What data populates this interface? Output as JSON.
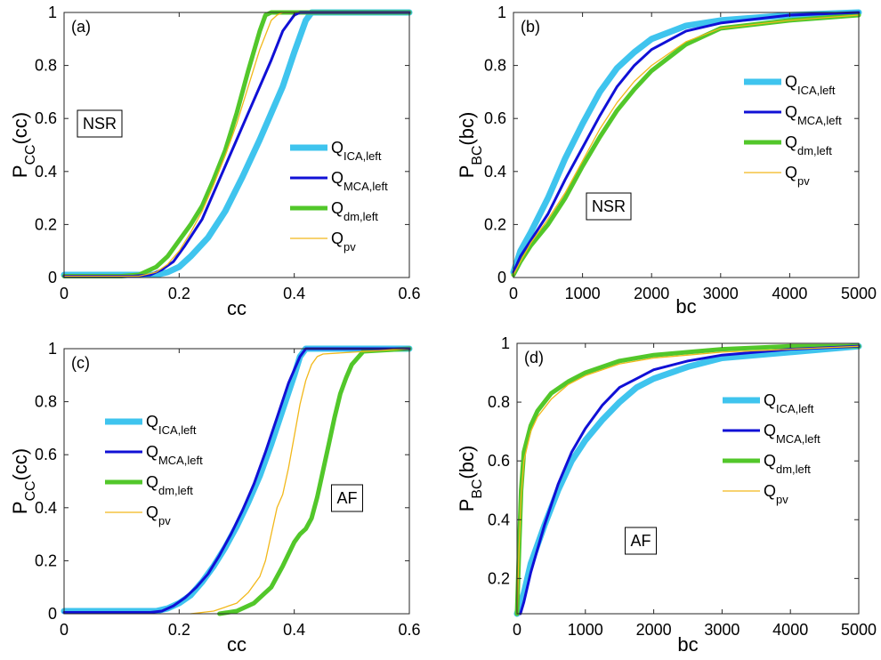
{
  "series_styles": {
    "ICA": {
      "color": "#3fc4ee",
      "width": 7
    },
    "MCA": {
      "color": "#1010d6",
      "width": 3
    },
    "dm": {
      "color": "#52c72a",
      "width": 5
    },
    "pv": {
      "color": "#f2b81a",
      "width": 1.3
    }
  },
  "chart_data": [
    {
      "type": "line",
      "panel_label": "(a)",
      "box_label": "NSR",
      "xlabel": "cc",
      "ylabel": {
        "main": "P",
        "sub": "CC",
        "suffix": "(cc)"
      },
      "xlim": [
        0,
        0.6
      ],
      "ylim": [
        0,
        1
      ],
      "xticks": [
        0,
        0.2,
        0.4,
        0.6
      ],
      "xtick_labels": [
        "0",
        "0.2",
        "0.4",
        "0.6"
      ],
      "yticks": [
        0,
        0.2,
        0.4,
        0.6,
        0.8,
        1
      ],
      "ytick_labels": [
        "0",
        "0.2",
        "0.4",
        "0.6",
        "0.8",
        "1"
      ],
      "legend_order": [
        "ICA",
        "MCA",
        "dm",
        "pv"
      ],
      "series": [
        {
          "key": "ICA",
          "name": "Q",
          "name_sub": "ICA,left",
          "x": [
            0,
            0.12,
            0.16,
            0.18,
            0.2,
            0.22,
            0.25,
            0.28,
            0.31,
            0.34,
            0.36,
            0.38,
            0.4,
            0.42,
            0.43,
            0.6
          ],
          "y": [
            0.01,
            0.01,
            0.01,
            0.02,
            0.04,
            0.08,
            0.15,
            0.25,
            0.38,
            0.52,
            0.62,
            0.72,
            0.85,
            0.97,
            1,
            1
          ]
        },
        {
          "key": "MCA",
          "name": "Q",
          "name_sub": "MCA,left",
          "x": [
            0,
            0.12,
            0.15,
            0.17,
            0.19,
            0.21,
            0.24,
            0.27,
            0.3,
            0.32,
            0.34,
            0.36,
            0.38,
            0.4,
            0.41,
            0.6
          ],
          "y": [
            0.005,
            0.005,
            0.01,
            0.03,
            0.06,
            0.12,
            0.22,
            0.37,
            0.52,
            0.62,
            0.72,
            0.82,
            0.93,
            0.99,
            1,
            1
          ]
        },
        {
          "key": "dm",
          "name": "Q",
          "name_sub": "dm,left",
          "x": [
            0,
            0.1,
            0.13,
            0.16,
            0.18,
            0.2,
            0.22,
            0.24,
            0.26,
            0.28,
            0.3,
            0.32,
            0.34,
            0.35,
            0.36,
            0.6
          ],
          "y": [
            0.005,
            0.005,
            0.01,
            0.04,
            0.08,
            0.14,
            0.2,
            0.27,
            0.37,
            0.48,
            0.62,
            0.78,
            0.93,
            0.99,
            1,
            1
          ]
        },
        {
          "key": "pv",
          "name": "Q",
          "name_sub": "pv",
          "x": [
            0,
            0.13,
            0.16,
            0.18,
            0.2,
            0.22,
            0.24,
            0.26,
            0.28,
            0.3,
            0.32,
            0.34,
            0.36,
            0.37,
            0.38,
            0.6
          ],
          "y": [
            0.005,
            0.005,
            0.02,
            0.05,
            0.1,
            0.17,
            0.25,
            0.35,
            0.46,
            0.58,
            0.72,
            0.86,
            0.97,
            0.99,
            1,
            1
          ]
        }
      ]
    },
    {
      "type": "line",
      "panel_label": "(b)",
      "box_label": "NSR",
      "xlabel": "bc",
      "ylabel": {
        "main": "P",
        "sub": "BC",
        "suffix": "(bc)"
      },
      "xlim": [
        0,
        5000
      ],
      "ylim": [
        0,
        1
      ],
      "xticks": [
        0,
        1000,
        2000,
        3000,
        4000,
        5000
      ],
      "xtick_labels": [
        "0",
        "1000",
        "2000",
        "3000",
        "4000",
        "5000"
      ],
      "yticks": [
        0,
        0.2,
        0.4,
        0.6,
        0.8,
        1
      ],
      "ytick_labels": [
        "0",
        "0.2",
        "0.4",
        "0.6",
        "0.8",
        "1"
      ],
      "legend_order": [
        "ICA",
        "MCA",
        "dm",
        "pv"
      ],
      "series": [
        {
          "key": "ICA",
          "name": "Q",
          "name_sub": "ICA,left",
          "x": [
            0,
            100,
            250,
            500,
            750,
            1000,
            1250,
            1500,
            1750,
            2000,
            2500,
            3000,
            4000,
            5000
          ],
          "y": [
            0.02,
            0.1,
            0.17,
            0.3,
            0.45,
            0.58,
            0.7,
            0.79,
            0.85,
            0.9,
            0.95,
            0.97,
            0.99,
            1
          ]
        },
        {
          "key": "MCA",
          "name": "Q",
          "name_sub": "MCA,left",
          "x": [
            0,
            100,
            250,
            500,
            750,
            1000,
            1250,
            1500,
            1750,
            2000,
            2500,
            3000,
            4000,
            5000
          ],
          "y": [
            0.02,
            0.08,
            0.14,
            0.24,
            0.37,
            0.49,
            0.61,
            0.72,
            0.8,
            0.86,
            0.93,
            0.96,
            0.99,
            1
          ]
        },
        {
          "key": "dm",
          "name": "Q",
          "name_sub": "dm,left",
          "x": [
            0,
            100,
            250,
            500,
            750,
            1000,
            1250,
            1500,
            1750,
            2000,
            2500,
            3000,
            4000,
            5000
          ],
          "y": [
            0.01,
            0.06,
            0.12,
            0.2,
            0.3,
            0.42,
            0.53,
            0.63,
            0.71,
            0.78,
            0.88,
            0.94,
            0.97,
            0.99
          ]
        },
        {
          "key": "pv",
          "name": "Q",
          "name_sub": "pv",
          "x": [
            0,
            100,
            250,
            500,
            750,
            1000,
            1250,
            1500,
            1750,
            2000,
            2500,
            3000,
            4000,
            5000
          ],
          "y": [
            0.01,
            0.06,
            0.13,
            0.22,
            0.32,
            0.44,
            0.56,
            0.66,
            0.74,
            0.8,
            0.89,
            0.94,
            0.97,
            0.99
          ]
        }
      ]
    },
    {
      "type": "line",
      "panel_label": "(c)",
      "box_label": "AF",
      "xlabel": "cc",
      "ylabel": {
        "main": "P",
        "sub": "CC",
        "suffix": "(cc)"
      },
      "xlim": [
        0,
        0.6
      ],
      "ylim": [
        0,
        1
      ],
      "xticks": [
        0,
        0.2,
        0.4,
        0.6
      ],
      "xtick_labels": [
        "0",
        "0.2",
        "0.4",
        "0.6"
      ],
      "yticks": [
        0,
        0.2,
        0.4,
        0.6,
        0.8,
        1
      ],
      "ytick_labels": [
        "0",
        "0.2",
        "0.4",
        "0.6",
        "0.8",
        "1"
      ],
      "legend_order": [
        "ICA",
        "MCA",
        "dm",
        "pv"
      ],
      "series": [
        {
          "key": "ICA",
          "name": "Q",
          "name_sub": "ICA,left",
          "x": [
            0,
            0.14,
            0.16,
            0.18,
            0.2,
            0.22,
            0.24,
            0.26,
            0.28,
            0.3,
            0.32,
            0.34,
            0.36,
            0.38,
            0.4,
            0.41,
            0.42,
            0.6
          ],
          "y": [
            0.01,
            0.01,
            0.01,
            0.02,
            0.04,
            0.07,
            0.12,
            0.18,
            0.25,
            0.33,
            0.42,
            0.52,
            0.64,
            0.77,
            0.9,
            0.97,
            1,
            1
          ]
        },
        {
          "key": "MCA",
          "name": "Q",
          "name_sub": "MCA,left",
          "x": [
            0,
            0.15,
            0.17,
            0.19,
            0.21,
            0.23,
            0.25,
            0.27,
            0.29,
            0.31,
            0.33,
            0.35,
            0.37,
            0.39,
            0.41,
            0.42,
            0.6
          ],
          "y": [
            0.005,
            0.005,
            0.01,
            0.03,
            0.06,
            0.1,
            0.15,
            0.22,
            0.3,
            0.39,
            0.49,
            0.61,
            0.74,
            0.87,
            0.97,
            1,
            1
          ]
        },
        {
          "key": "dm",
          "name": "Q",
          "name_sub": "dm,left",
          "x": [
            0.27,
            0.3,
            0.33,
            0.36,
            0.38,
            0.4,
            0.41,
            0.42,
            0.43,
            0.44,
            0.45,
            0.46,
            0.47,
            0.48,
            0.49,
            0.5,
            0.52,
            0.6
          ],
          "y": [
            0,
            0.01,
            0.04,
            0.1,
            0.18,
            0.27,
            0.3,
            0.32,
            0.36,
            0.44,
            0.54,
            0.64,
            0.74,
            0.83,
            0.89,
            0.94,
            0.99,
            1
          ]
        },
        {
          "key": "pv",
          "name": "Q",
          "name_sub": "pv",
          "x": [
            0.22,
            0.26,
            0.3,
            0.32,
            0.34,
            0.35,
            0.36,
            0.37,
            0.38,
            0.39,
            0.4,
            0.41,
            0.42,
            0.43,
            0.44,
            0.45,
            0.6
          ],
          "y": [
            0,
            0.01,
            0.04,
            0.08,
            0.14,
            0.2,
            0.3,
            0.4,
            0.45,
            0.55,
            0.67,
            0.79,
            0.88,
            0.94,
            0.97,
            0.98,
            1
          ]
        }
      ]
    },
    {
      "type": "line",
      "panel_label": "(d)",
      "box_label": "AF",
      "xlabel": "bc",
      "ylabel": {
        "main": "P",
        "sub": "BC",
        "suffix": "(bc)"
      },
      "xlim": [
        0,
        5000
      ],
      "ylim": [
        0.08,
        1
      ],
      "xticks": [
        0,
        1000,
        2000,
        3000,
        4000,
        5000
      ],
      "xtick_labels": [
        "0",
        "1000",
        "2000",
        "3000",
        "4000",
        "5000"
      ],
      "yticks": [
        0.2,
        0.4,
        0.6,
        0.8,
        1
      ],
      "ytick_labels": [
        "0.2",
        "0.4",
        "0.6",
        "0.8",
        "1"
      ],
      "legend_order": [
        "ICA",
        "MCA",
        "dm",
        "pv"
      ],
      "series": [
        {
          "key": "ICA",
          "name": "Q",
          "name_sub": "ICA,left",
          "x": [
            0,
            100,
            200,
            400,
            600,
            800,
            1000,
            1250,
            1500,
            1750,
            2000,
            2500,
            3000,
            4000,
            5000
          ],
          "y": [
            0.08,
            0.15,
            0.25,
            0.38,
            0.5,
            0.6,
            0.67,
            0.74,
            0.8,
            0.85,
            0.88,
            0.92,
            0.95,
            0.97,
            0.99
          ]
        },
        {
          "key": "MCA",
          "name": "Q",
          "name_sub": "MCA,left",
          "x": [
            50,
            100,
            200,
            400,
            600,
            800,
            1000,
            1250,
            1500,
            1750,
            2000,
            2500,
            3000,
            4000,
            5000
          ],
          "y": [
            0.08,
            0.12,
            0.22,
            0.38,
            0.52,
            0.63,
            0.71,
            0.79,
            0.85,
            0.88,
            0.91,
            0.94,
            0.96,
            0.98,
            0.99
          ]
        },
        {
          "key": "dm",
          "name": "Q",
          "name_sub": "dm,left",
          "x": [
            0,
            30,
            60,
            100,
            200,
            300,
            500,
            750,
            1000,
            1500,
            2000,
            2500,
            3000,
            4000,
            5000
          ],
          "y": [
            0.08,
            0.3,
            0.5,
            0.63,
            0.72,
            0.77,
            0.83,
            0.87,
            0.9,
            0.94,
            0.96,
            0.97,
            0.98,
            0.99,
            0.99
          ]
        },
        {
          "key": "pv",
          "name": "Q",
          "name_sub": "pv",
          "x": [
            0,
            30,
            60,
            100,
            200,
            300,
            500,
            750,
            1000,
            1500,
            2000,
            2500,
            3000,
            4000,
            5000
          ],
          "y": [
            0.08,
            0.3,
            0.48,
            0.6,
            0.7,
            0.75,
            0.81,
            0.86,
            0.89,
            0.93,
            0.95,
            0.96,
            0.97,
            0.98,
            0.99
          ]
        }
      ]
    }
  ]
}
